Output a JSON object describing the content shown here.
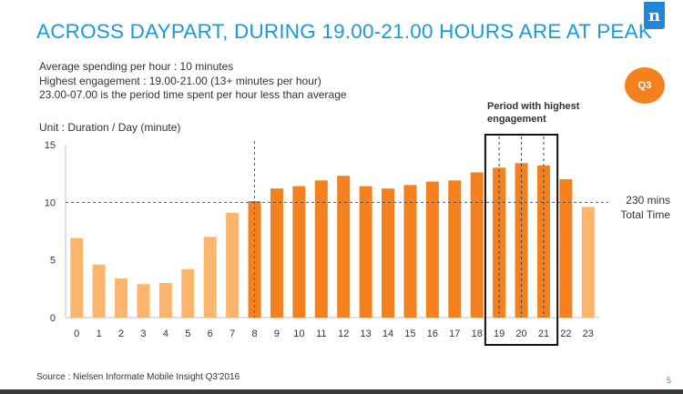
{
  "title": "ACROSS  DAYPART, DURING 19.00-21.00 HOURS ARE AT PEAK",
  "logo_letter": "n",
  "notes": [
    "Average spending per hour : 10 minutes",
    "Highest engagement : 19.00-21.00 (13+ minutes per hour)",
    "23.00-07.00 is the period time spent per hour less than average"
  ],
  "badge": "Q3",
  "unit_label": "Unit : Duration / Day (minute)",
  "period_label": "Period with highest engagement",
  "total_time": [
    "230 mins",
    "Total Time"
  ],
  "source": "Source : Nielsen  Informate Mobile Insight Q3'2016",
  "page_number": "5",
  "colors": {
    "light_bar": "#fbb56d",
    "dark_bar": "#f5811e",
    "accent": "#1a9ad6"
  },
  "chart_data": {
    "type": "bar",
    "categories": [
      "0",
      "1",
      "2",
      "3",
      "4",
      "5",
      "6",
      "7",
      "8",
      "9",
      "10",
      "11",
      "12",
      "13",
      "14",
      "15",
      "16",
      "17",
      "18",
      "19",
      "20",
      "21",
      "22",
      "23"
    ],
    "values": [
      6.9,
      4.6,
      3.4,
      2.9,
      3.0,
      4.2,
      7.0,
      9.1,
      10.1,
      11.2,
      11.4,
      11.9,
      12.3,
      11.4,
      11.2,
      11.5,
      11.8,
      11.9,
      12.6,
      13.0,
      13.4,
      13.2,
      12.0,
      9.6
    ],
    "bar_shade": [
      "light",
      "light",
      "light",
      "light",
      "light",
      "light",
      "light",
      "light",
      "dark",
      "dark",
      "dark",
      "dark",
      "dark",
      "dark",
      "dark",
      "dark",
      "dark",
      "dark",
      "dark",
      "dark",
      "dark",
      "dark",
      "dark",
      "light"
    ],
    "y_ticks": [
      0,
      5,
      10,
      15
    ],
    "ylim": [
      0,
      15
    ],
    "reference_line": 10,
    "highlight_categories": [
      "19",
      "20",
      "21"
    ],
    "grid": false
  }
}
